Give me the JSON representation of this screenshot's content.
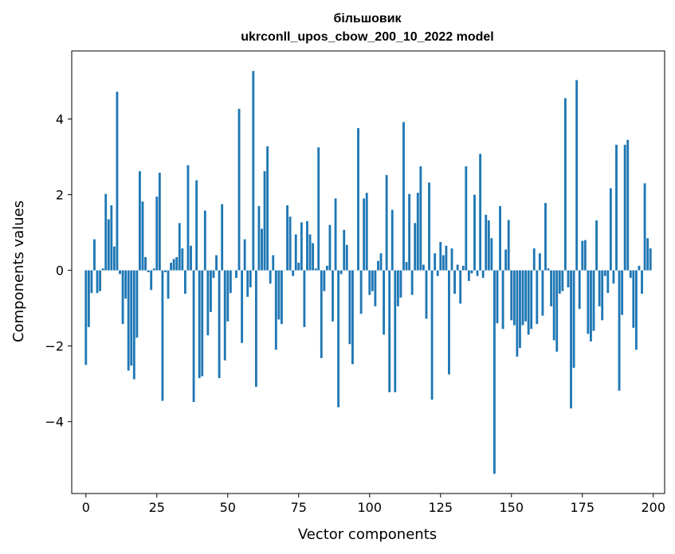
{
  "chart_data": {
    "type": "bar",
    "title": "більшовик",
    "subtitle": "ukrconll_upos_cbow_200_10_2022 model",
    "xlabel": "Vector components",
    "ylabel": "Components values",
    "xlim": [
      -5,
      204
    ],
    "ylim": [
      -5.9,
      5.8
    ],
    "xticks": [
      0,
      25,
      50,
      75,
      100,
      125,
      150,
      175,
      200
    ],
    "yticks": [
      -4,
      -2,
      0,
      2,
      4
    ],
    "grid": false,
    "color": "#1f77b4",
    "x": [
      0,
      1,
      2,
      3,
      4,
      5,
      6,
      7,
      8,
      9,
      10,
      11,
      12,
      13,
      14,
      15,
      16,
      17,
      18,
      19,
      20,
      21,
      22,
      23,
      24,
      25,
      26,
      27,
      28,
      29,
      30,
      31,
      32,
      33,
      34,
      35,
      36,
      37,
      38,
      39,
      40,
      41,
      42,
      43,
      44,
      45,
      46,
      47,
      48,
      49,
      50,
      51,
      52,
      53,
      54,
      55,
      56,
      57,
      58,
      59,
      60,
      61,
      62,
      63,
      64,
      65,
      66,
      67,
      68,
      69,
      70,
      71,
      72,
      73,
      74,
      75,
      76,
      77,
      78,
      79,
      80,
      81,
      82,
      83,
      84,
      85,
      86,
      87,
      88,
      89,
      90,
      91,
      92,
      93,
      94,
      95,
      96,
      97,
      98,
      99,
      100,
      101,
      102,
      103,
      104,
      105,
      106,
      107,
      108,
      109,
      110,
      111,
      112,
      113,
      114,
      115,
      116,
      117,
      118,
      119,
      120,
      121,
      122,
      123,
      124,
      125,
      126,
      127,
      128,
      129,
      130,
      131,
      132,
      133,
      134,
      135,
      136,
      137,
      138,
      139,
      140,
      141,
      142,
      143,
      144,
      145,
      146,
      147,
      148,
      149,
      150,
      151,
      152,
      153,
      154,
      155,
      156,
      157,
      158,
      159,
      160,
      161,
      162,
      163,
      164,
      165,
      166,
      167,
      168,
      169,
      170,
      171,
      172,
      173,
      174,
      175,
      176,
      177,
      178,
      179,
      180,
      181,
      182,
      183,
      184,
      185,
      186,
      187,
      188,
      189,
      190,
      191,
      192,
      193,
      194,
      195,
      196,
      197,
      198,
      199
    ],
    "values": [
      -2.5,
      -1.5,
      -0.6,
      0.82,
      -0.6,
      -0.55,
      0.05,
      2.02,
      1.35,
      1.72,
      0.63,
      4.72,
      -0.1,
      -1.42,
      -0.75,
      -2.65,
      -2.52,
      -2.88,
      -1.78,
      2.62,
      1.82,
      0.35,
      -0.05,
      -0.52,
      0.05,
      1.95,
      2.58,
      -3.45,
      -0.05,
      -0.75,
      0.2,
      0.3,
      0.35,
      1.25,
      0.58,
      -0.62,
      2.78,
      0.65,
      -3.48,
      2.38,
      -2.85,
      -2.8,
      1.58,
      -1.72,
      -1.1,
      -0.2,
      0.4,
      -2.85,
      1.75,
      -2.38,
      -1.35,
      -0.6,
      0.0,
      -0.2,
      4.27,
      -1.92,
      0.82,
      -0.7,
      -0.45,
      5.27,
      -3.08,
      1.7,
      1.1,
      2.62,
      3.28,
      -0.35,
      0.4,
      -2.1,
      -1.3,
      -1.42,
      0.0,
      1.72,
      1.42,
      -0.15,
      0.95,
      0.2,
      1.27,
      -1.5,
      1.3,
      0.95,
      0.72,
      0.05,
      3.25,
      -2.32,
      -0.55,
      0.12,
      1.2,
      -1.35,
      1.9,
      -3.62,
      -0.1,
      1.07,
      0.67,
      -1.95,
      -2.48,
      0.0,
      3.76,
      -1.15,
      1.9,
      2.05,
      -0.65,
      -0.55,
      -0.95,
      0.25,
      0.45,
      -1.7,
      2.52,
      -3.22,
      1.6,
      -3.22,
      -0.95,
      -0.72,
      3.92,
      0.22,
      2.02,
      -0.65,
      1.25,
      2.05,
      2.75,
      0.15,
      -1.28,
      2.32,
      -3.42,
      0.45,
      -0.15,
      0.75,
      0.4,
      0.65,
      -2.75,
      0.58,
      -0.62,
      0.15,
      -0.88,
      0.12,
      2.75,
      -0.28,
      -0.08,
      2.0,
      -0.15,
      3.08,
      -0.2,
      1.47,
      1.32,
      0.85,
      -5.38,
      -1.4,
      1.7,
      -1.55,
      0.55,
      1.33,
      -1.32,
      -1.45,
      -2.28,
      -2.05,
      -1.45,
      -1.35,
      -1.7,
      -1.55,
      0.58,
      -1.42,
      0.45,
      -1.2,
      1.78,
      0.05,
      -0.95,
      -1.85,
      -2.15,
      -0.62,
      -0.55,
      4.55,
      -0.45,
      -3.65,
      -2.58,
      5.03,
      -1.02,
      0.78,
      0.8,
      -1.68,
      -1.88,
      -1.6,
      1.32,
      -0.95,
      -1.32,
      -0.15,
      -0.6,
      2.17,
      -0.35,
      3.32,
      -3.18,
      -1.18,
      3.32,
      3.45,
      -0.2,
      -1.52,
      -2.1,
      0.12,
      -0.62,
      2.3,
      0.85,
      0.58
    ]
  }
}
